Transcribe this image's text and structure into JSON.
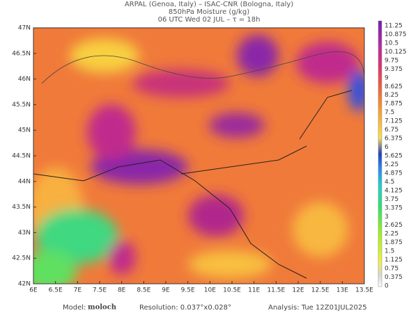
{
  "header": {
    "lines": [
      "ARPAL (Genoa, Italy)  –  ISAC-CNR (Bologna, Italy)",
      "850hPa Moisture (g/kg)",
      "06 UTC Wed 02 JUL  –  τ = 18h"
    ]
  },
  "map": {
    "lat_labels": [
      "47N",
      "46.5N",
      "46N",
      "45.5N",
      "45N",
      "44.5N",
      "44N",
      "43.5N",
      "43N",
      "42.5N",
      "42N"
    ],
    "lon_labels": [
      "6E",
      "6.5E",
      "7E",
      "7.5E",
      "8E",
      "8.5E",
      "9E",
      "9.5E",
      "10E",
      "10.5E",
      "11E",
      "11.5E",
      "12E",
      "12.5E",
      "13E",
      "13.5E"
    ]
  },
  "colorbar": {
    "labels": [
      "11.25",
      "10.875",
      "10.5",
      "10.125",
      "9.75",
      "9.375",
      "9",
      "8.625",
      "8.25",
      "7.875",
      "7.5",
      "7.125",
      "6.75",
      "6.375",
      "6",
      "5.625",
      "5.25",
      "4.875",
      "4.5",
      "4.125",
      "3.75",
      "3.375",
      "3",
      "2.625",
      "2.25",
      "1.875",
      "1.5",
      "1.125",
      "0.75",
      "0.375",
      "0"
    ]
  },
  "footer": {
    "model_label": "Model:",
    "model": "moloch",
    "resolution": "Resolution: 0.037°x0.028°",
    "analysis": "Analysis: Tue 12Z01JUL2025"
  }
}
